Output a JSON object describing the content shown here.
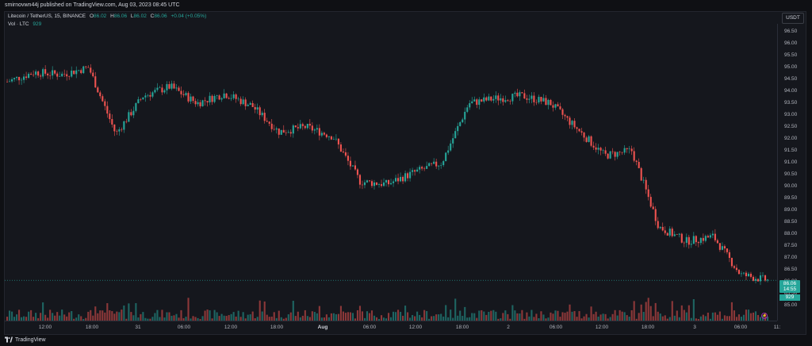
{
  "header": {
    "published": "smirnovwn44j published on TradingView.com, Aug 03, 2023 08:45 UTC"
  },
  "legend": {
    "symbol": "Litecoin / TetherUS, 15, BINANCE",
    "o_label": "O",
    "o_val": "86.02",
    "h_label": "H",
    "h_val": "86.06",
    "l_label": "L",
    "l_val": "86.02",
    "c_label": "C",
    "c_val": "86.06",
    "change": "+0.04 (+0.05%)",
    "vol_label": "Vol · LTC",
    "vol_val": "929"
  },
  "currency": "USDT",
  "price_ticks": [
    "96.50",
    "96.00",
    "95.50",
    "95.00",
    "94.50",
    "94.00",
    "93.50",
    "93.00",
    "92.50",
    "92.00",
    "91.50",
    "91.00",
    "90.50",
    "90.00",
    "89.50",
    "89.00",
    "88.50",
    "88.00",
    "87.50",
    "87.00",
    "86.50",
    "86.00",
    "85.50",
    "85.00"
  ],
  "last_price": {
    "price": "86.06",
    "countdown": "14:55"
  },
  "volume_badge": "929",
  "time_ticks": [
    {
      "label": "12:00",
      "bold": false
    },
    {
      "label": "18:00",
      "bold": false
    },
    {
      "label": "31",
      "bold": false
    },
    {
      "label": "06:00",
      "bold": false
    },
    {
      "label": "12:00",
      "bold": false
    },
    {
      "label": "18:00",
      "bold": false
    },
    {
      "label": "Aug",
      "bold": true
    },
    {
      "label": "06:00",
      "bold": false
    },
    {
      "label": "12:00",
      "bold": false
    },
    {
      "label": "18:00",
      "bold": false
    },
    {
      "label": "2",
      "bold": false
    },
    {
      "label": "06:00",
      "bold": false
    },
    {
      "label": "12:00",
      "bold": false
    },
    {
      "label": "18:00",
      "bold": false
    },
    {
      "label": "3",
      "bold": false
    },
    {
      "label": "06:00",
      "bold": false
    },
    {
      "label": "11:",
      " bold": false
    }
  ],
  "footer": {
    "brand": "TradingView"
  },
  "colors": {
    "up": "#26a69a",
    "down": "#ef5350",
    "bg": "#15171d"
  },
  "chart_data": {
    "type": "line",
    "title": "Litecoin / TetherUS, 15, BINANCE",
    "ylim": [
      84.6,
      96.9
    ],
    "x": [
      "Jul 30 08:00",
      "Jul 30 12:00",
      "Jul 30 16:00",
      "Jul 30 18:00",
      "Jul 30 20:00",
      "Jul 31 00:00",
      "Jul 31 04:00",
      "Jul 31 08:00",
      "Jul 31 12:00",
      "Jul 31 16:00",
      "Jul 31 20:00",
      "Aug 1 00:00",
      "Aug 1 04:00",
      "Aug 1 08:00",
      "Aug 1 12:00",
      "Aug 1 14:00",
      "Aug 1 18:00",
      "Aug 1 22:00",
      "Aug 2 02:00",
      "Aug 2 06:00",
      "Aug 2 10:00",
      "Aug 2 12:00",
      "Aug 2 14:00",
      "Aug 2 16:00",
      "Aug 2 18:00",
      "Aug 2 22:00",
      "Aug 3 02:00",
      "Aug 3 06:00",
      "Aug 3 08:30"
    ],
    "series": [
      {
        "values": [
          94.4,
          94.8,
          94.7,
          95.0,
          92.2,
          93.8,
          94.2,
          93.5,
          93.9,
          93.4,
          92.3,
          92.5,
          92.1,
          90.2,
          90.1,
          90.6,
          91.0,
          93.5,
          93.7,
          93.8,
          93.5,
          92.4,
          91.3,
          91.5,
          88.3,
          87.7,
          87.9,
          86.3,
          86.06
        ]
      }
    ]
  }
}
